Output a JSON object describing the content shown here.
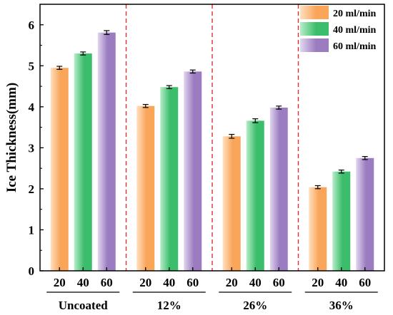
{
  "chart_data": {
    "type": "bar",
    "ylabel": "Ice Thickness(mm)",
    "ylim": [
      0,
      6.5
    ],
    "yticks": [
      0,
      1,
      2,
      3,
      4,
      5,
      6
    ],
    "groups": [
      "Uncoated",
      "12%",
      "26%",
      "36%"
    ],
    "sub_ticks": [
      "20",
      "40",
      "60"
    ],
    "series": [
      {
        "name": "20 ml/min",
        "values": [
          4.95,
          4.02,
          3.28,
          2.04
        ],
        "errors": [
          0.02,
          0.02,
          0.03,
          0.02
        ],
        "color": "#f9a55a",
        "color_light": "#ffe0c0"
      },
      {
        "name": "40 ml/min",
        "values": [
          5.3,
          4.48,
          3.66,
          2.42
        ],
        "errors": [
          0.02,
          0.02,
          0.03,
          0.02
        ],
        "color": "#3cbd6c",
        "color_light": "#b6edc8"
      },
      {
        "name": "60 ml/min",
        "values": [
          5.81,
          4.86,
          3.98,
          2.75
        ],
        "errors": [
          0.03,
          0.02,
          0.02,
          0.02
        ],
        "color": "#9b7cc0",
        "color_light": "#e2d6ef"
      }
    ],
    "separator_color": "#e03030",
    "legend_position": "top-right",
    "grid": false
  }
}
